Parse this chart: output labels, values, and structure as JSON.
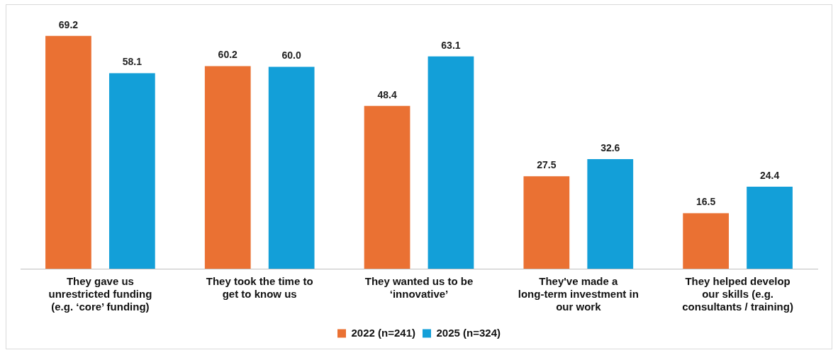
{
  "chart_data": {
    "type": "bar",
    "categories": [
      "They gave us unrestricted funding (e.g. ‘core’ funding)",
      "They took the time to get to know us",
      "They wanted us to be ‘innovative’",
      "They've made a long-term investment in our work",
      "They helped develop our skills (e.g. consultants / training)"
    ],
    "series": [
      {
        "name": "2022 (n=241)",
        "color": "#ea7133",
        "values": [
          69.2,
          60.2,
          48.4,
          27.5,
          16.5
        ],
        "value_labels": [
          "69.2",
          "60.2",
          "48.4",
          "27.5",
          "16.5"
        ]
      },
      {
        "name": "2025 (n=324)",
        "color": "#139fd8",
        "values": [
          58.1,
          60.0,
          63.1,
          32.6,
          24.4
        ],
        "value_labels": [
          "58.1",
          "60.0",
          "63.1",
          "32.6",
          "24.4"
        ]
      }
    ],
    "grid": false,
    "legend": "bottom"
  }
}
